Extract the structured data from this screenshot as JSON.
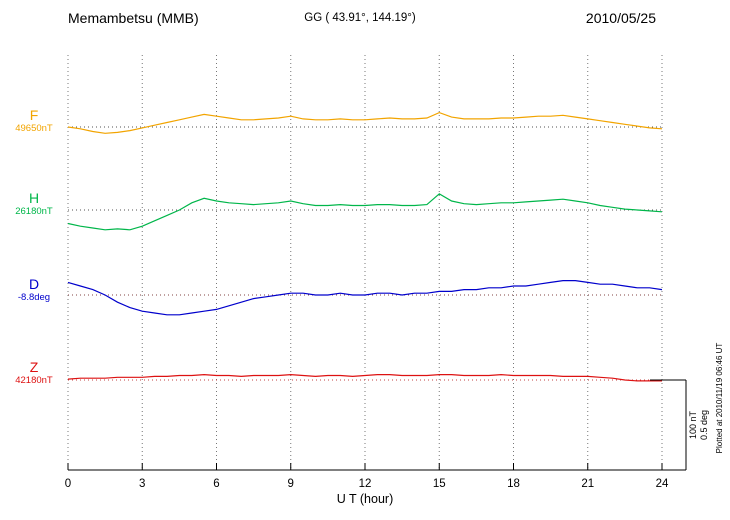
{
  "header": {
    "station": "Memambetsu (MMB)",
    "coords": "GG ( 43.91°, 144.19°)",
    "date": "2010/05/25"
  },
  "axis": {
    "xlabel": "U T (hour)",
    "xmin": 0,
    "xmax": 24
  },
  "scale_bar": {
    "labels": [
      "100 nT",
      "0.5 deg"
    ]
  },
  "footer_note": "Plotted at 2010/11/19 06:46 UT",
  "chart_data": {
    "type": "line",
    "title": "Memambetsu (MMB) magnetogram 2010/05/25",
    "xlabel": "U T (hour)",
    "x_range": [
      0,
      24
    ],
    "x_ticks": [
      0,
      3,
      6,
      9,
      12,
      15,
      18,
      21,
      24
    ],
    "x_step_hours": 0.5,
    "scale": {
      "nT_per_div": 100,
      "deg_per_div": 0.5
    },
    "grid": "dotted-vertical-at-3h",
    "legend_position": "left-of-each-trace",
    "series": [
      {
        "name": "F",
        "unit": "nT",
        "base": 49650,
        "base_label": "49650nT",
        "color": "#f2a400",
        "baseline_color": "#505050",
        "offsets": [
          0,
          -2,
          -5,
          -7,
          -6,
          -4,
          -1,
          2,
          5,
          8,
          11,
          14,
          12,
          10,
          8,
          8,
          9,
          10,
          12,
          9,
          8,
          8,
          9,
          8,
          8,
          9,
          10,
          9,
          9,
          10,
          16,
          11,
          9,
          9,
          9,
          10,
          10,
          11,
          12,
          12,
          13,
          11,
          9,
          7,
          5,
          3,
          1,
          -1,
          -2
        ]
      },
      {
        "name": "H",
        "unit": "nT",
        "base": 26180,
        "base_label": "26180nT",
        "color": "#00b64a",
        "baseline_color": "#505050",
        "offsets": [
          -15,
          -18,
          -20,
          -22,
          -21,
          -22,
          -18,
          -12,
          -6,
          0,
          8,
          13,
          10,
          8,
          7,
          6,
          7,
          8,
          10,
          7,
          5,
          5,
          6,
          5,
          5,
          6,
          6,
          5,
          5,
          6,
          18,
          10,
          7,
          6,
          7,
          8,
          8,
          9,
          10,
          11,
          12,
          10,
          8,
          5,
          3,
          1,
          0,
          -1,
          -2
        ]
      },
      {
        "name": "D",
        "unit": "deg",
        "base": -8.8,
        "base_label": "-8.8deg",
        "color": "#0000cc",
        "baseline_color": "#804040",
        "offsets": [
          0.07,
          0.05,
          0.03,
          0.0,
          -0.04,
          -0.07,
          -0.09,
          -0.1,
          -0.11,
          -0.11,
          -0.1,
          -0.09,
          -0.08,
          -0.06,
          -0.04,
          -0.02,
          -0.01,
          0.0,
          0.01,
          0.01,
          0.0,
          0.0,
          0.01,
          0.0,
          0.0,
          0.01,
          0.01,
          0.0,
          0.01,
          0.01,
          0.02,
          0.02,
          0.03,
          0.03,
          0.04,
          0.04,
          0.05,
          0.05,
          0.06,
          0.07,
          0.08,
          0.08,
          0.07,
          0.06,
          0.06,
          0.05,
          0.04,
          0.04,
          0.03
        ]
      },
      {
        "name": "Z",
        "unit": "nT",
        "base": 42180,
        "base_label": "42180nT",
        "color": "#dd1111",
        "baseline_color": "#c04040",
        "offsets": [
          1,
          2,
          2,
          2,
          3,
          3,
          3,
          4,
          4,
          5,
          5,
          6,
          5,
          5,
          4,
          5,
          5,
          5,
          6,
          5,
          4,
          5,
          5,
          4,
          5,
          6,
          6,
          5,
          5,
          5,
          6,
          6,
          5,
          5,
          5,
          6,
          5,
          5,
          5,
          5,
          4,
          4,
          4,
          3,
          2,
          0,
          -1,
          -1,
          -1
        ]
      }
    ]
  }
}
